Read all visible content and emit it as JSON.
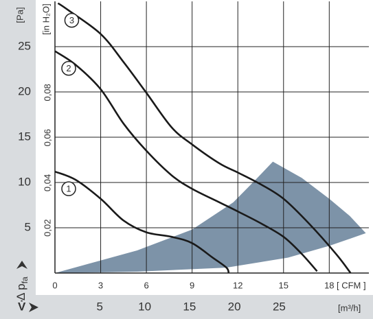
{
  "chart_data": {
    "type": "line",
    "y_label": "Δ p",
    "y_label_sub": "fa",
    "y_unit": "[Pa]",
    "y2_unit": "[in H₂O]",
    "x_unit": "[ CFM ]",
    "x2_label": "V̇",
    "x2_unit": "[m³/h]",
    "xlim": [
      0,
      20.6
    ],
    "xticks": [
      0,
      3,
      6,
      9,
      12,
      15,
      18
    ],
    "ylim": [
      0,
      30
    ],
    "yticks": [
      5,
      10,
      15,
      20,
      25
    ],
    "y2lim": [
      0,
      0.1204
    ],
    "y2ticks": [
      {
        "value": 0.02,
        "label": "0,02"
      },
      {
        "value": 0.04,
        "label": "0,04"
      },
      {
        "value": 0.06,
        "label": "0,06"
      },
      {
        "value": 0.08,
        "label": "0,08"
      }
    ],
    "x2lim": [
      0,
      35.0
    ],
    "x2ticks": [
      5,
      10,
      15,
      20,
      25
    ],
    "grid": true,
    "region": {
      "color": "#7d93a8",
      "x": [
        0,
        5.4,
        9,
        11.7,
        13.05,
        14.3,
        16.2,
        18,
        19.35,
        20.4,
        18,
        15.3,
        11.25,
        5.4
      ],
      "values": [
        0,
        2.5,
        4.8,
        7.8,
        10.1,
        12.3,
        10.5,
        8.2,
        6.3,
        4.4,
        3.0,
        1.7,
        0.6,
        0.15
      ]
    },
    "series": [
      {
        "name": "1",
        "color": "#1a1a1a",
        "x": [
          0,
          1.35,
          3,
          4.5,
          6,
          7.65,
          9,
          10.35,
          11.25,
          11.4
        ],
        "values": [
          11.2,
          10.3,
          8.2,
          5.8,
          4.5,
          4.0,
          3.3,
          1.7,
          0.6,
          0
        ]
      },
      {
        "name": "2",
        "color": "#1a1a1a",
        "x": [
          0,
          1.35,
          3,
          4.5,
          6,
          7.65,
          9,
          10.8,
          12,
          13.5,
          15,
          16.2,
          17.2
        ],
        "values": [
          24.5,
          23,
          20.3,
          16.5,
          13.5,
          10.8,
          9.3,
          7.8,
          6.8,
          5.5,
          4.0,
          2.1,
          0.2
        ]
      },
      {
        "name": "3",
        "color": "#1a1a1a",
        "x": [
          0.2,
          0.9,
          3,
          4.5,
          6,
          7.65,
          9,
          10.8,
          12,
          13.5,
          15,
          16.65,
          18.45,
          19.4
        ],
        "values": [
          29.8,
          29,
          26.4,
          23.3,
          19.9,
          16.1,
          14.2,
          12.1,
          11.1,
          9.8,
          8.2,
          5.5,
          2.1,
          0
        ]
      }
    ]
  }
}
